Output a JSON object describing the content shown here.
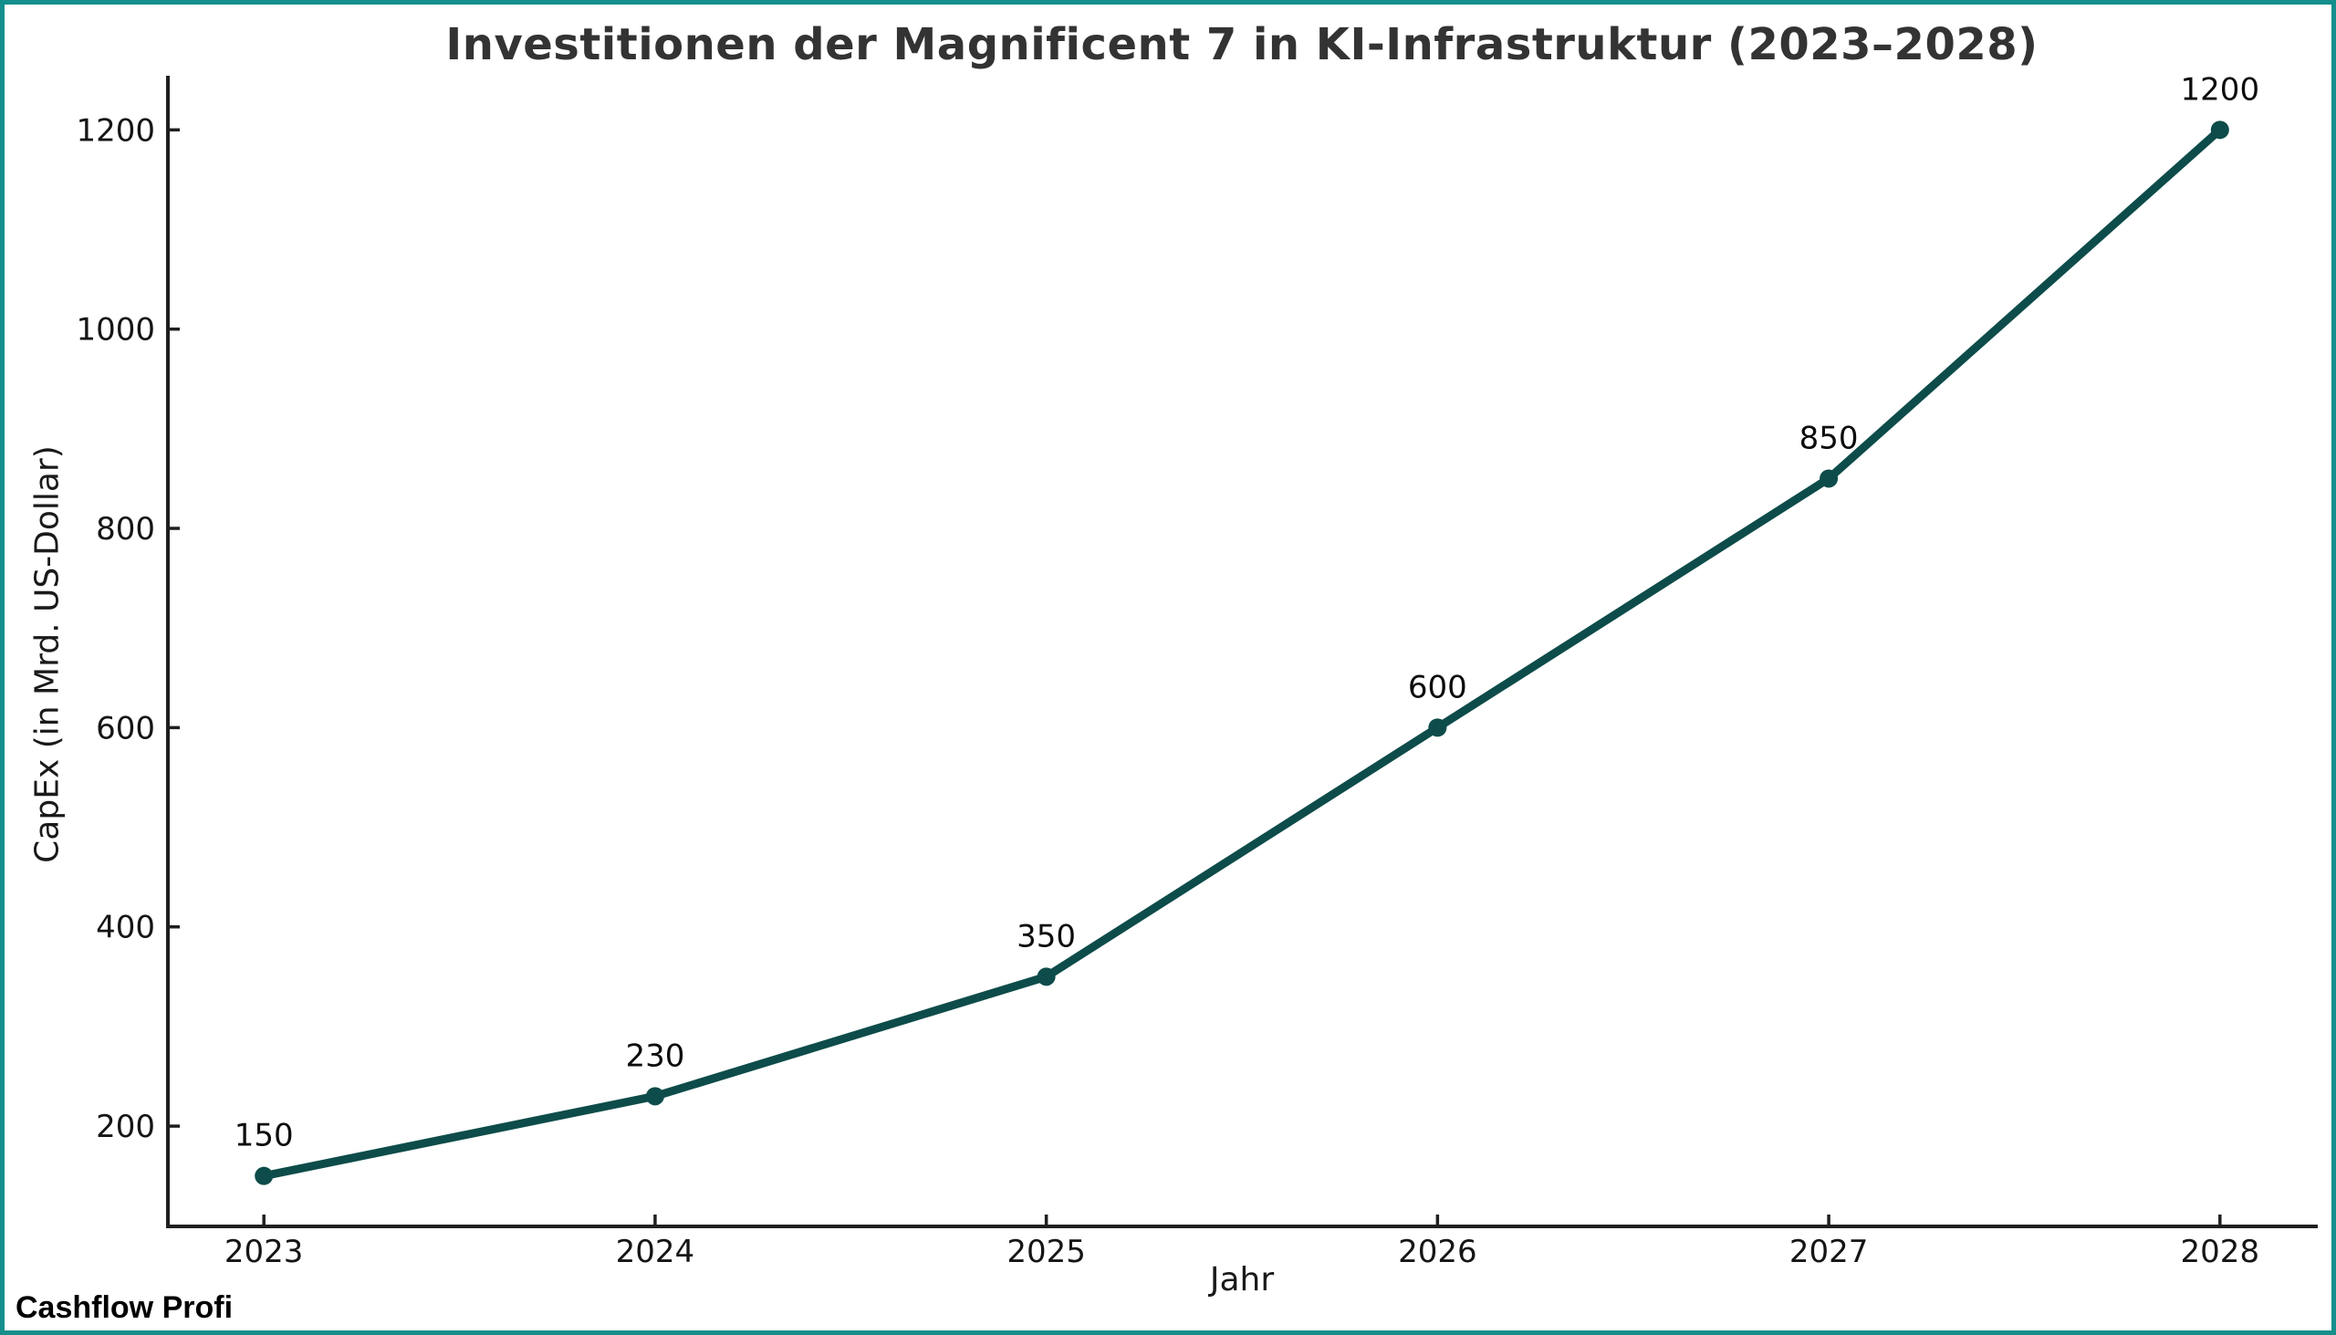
{
  "title": "Investitionen der Magnificent 7 in KI-Infrastruktur (2023–2028)",
  "watermark": "Cashflow Profi",
  "colors": {
    "frame": "#148f8c",
    "line": "#0d4c4a",
    "marker": "#0d4c4a",
    "title_text": "#333333",
    "axis": "#1f1f1f",
    "tick_text": "#151515",
    "annotation_text": "#0c0c0c",
    "background": "#ffffff"
  },
  "chart_data": {
    "type": "line",
    "title": "Investitionen der Magnificent 7 in KI-Infrastruktur (2023–2028)",
    "xlabel": "Jahr",
    "ylabel": "CapEx (in Mrd. US-Dollar)",
    "x": [
      2023,
      2024,
      2025,
      2026,
      2027,
      2028
    ],
    "categories": [
      "2023",
      "2024",
      "2025",
      "2026",
      "2027",
      "2028"
    ],
    "series": [
      {
        "name": "CapEx",
        "values": [
          150,
          230,
          350,
          600,
          850,
          1200
        ]
      }
    ],
    "point_labels": [
      "150",
      "230",
      "350",
      "600",
      "850",
      "1200"
    ],
    "yticks": [
      200,
      400,
      600,
      800,
      1000,
      1200
    ],
    "ytick_labels": [
      "200",
      "400",
      "600",
      "800",
      "1000",
      "1200"
    ],
    "xlim": [
      2022.75,
      2028.25
    ],
    "ylim": [
      97.5,
      1252.5
    ],
    "grid": false,
    "legend": "none",
    "marker": "circle",
    "tick_direction": "in"
  }
}
